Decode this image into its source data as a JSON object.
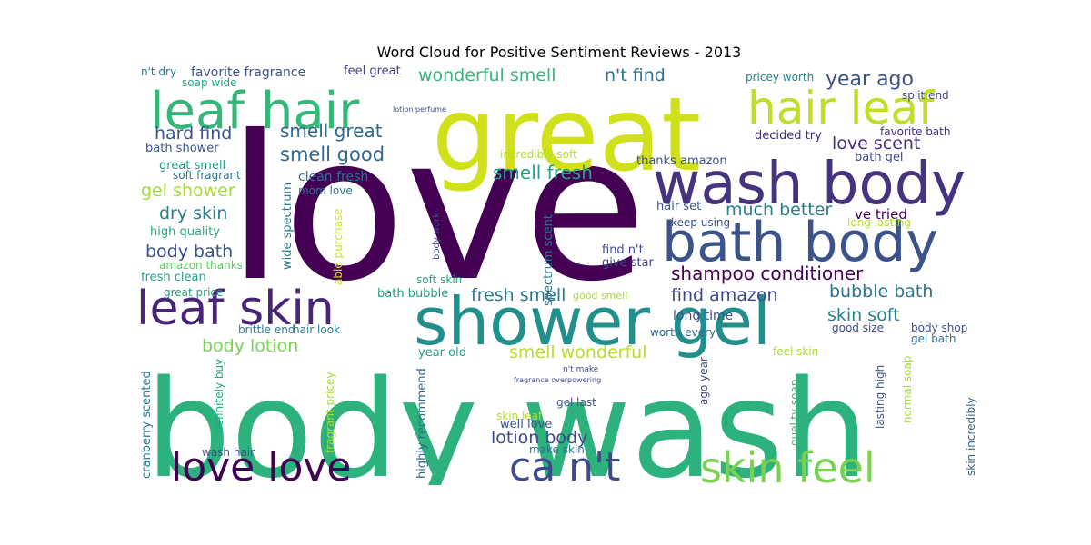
{
  "title": "Word Cloud for Positive Sentiment Reviews - 2013",
  "chart_data": {
    "type": "wordcloud",
    "title": "Word Cloud for Positive Sentiment Reviews - 2013",
    "colormap": "viridis",
    "background": "#ffffff",
    "words": [
      {
        "text": "love",
        "weight": 1.0,
        "color": "#440154"
      },
      {
        "text": "body wash",
        "weight": 0.95,
        "color": "#2db27d"
      },
      {
        "text": "great",
        "weight": 0.72,
        "color": "#d0e11c"
      },
      {
        "text": "shower gel",
        "weight": 0.5,
        "color": "#21908d"
      },
      {
        "text": "wash body",
        "weight": 0.44,
        "color": "#46337f"
      },
      {
        "text": "bath body",
        "weight": 0.41,
        "color": "#3b528b"
      },
      {
        "text": "leaf hair",
        "weight": 0.38,
        "color": "#35b779"
      },
      {
        "text": "leaf skin",
        "weight": 0.35,
        "color": "#482576"
      },
      {
        "text": "hair leaf",
        "weight": 0.33,
        "color": "#bddf26"
      },
      {
        "text": "love love",
        "weight": 0.3,
        "color": "#440154"
      },
      {
        "text": "ca n't",
        "weight": 0.3,
        "color": "#3e4989"
      },
      {
        "text": "skin feel",
        "weight": 0.29,
        "color": "#7ad151"
      },
      {
        "text": "wonderful smell",
        "weight": 0.16,
        "color": "#35b779"
      },
      {
        "text": "n't find",
        "weight": 0.16,
        "color": "#2c728e"
      },
      {
        "text": "year ago",
        "weight": 0.16,
        "color": "#3b528b"
      },
      {
        "text": "smell great",
        "weight": 0.15,
        "color": "#31688e"
      },
      {
        "text": "smell good",
        "weight": 0.15,
        "color": "#31688e"
      },
      {
        "text": "love scent",
        "weight": 0.14,
        "color": "#472d7b"
      },
      {
        "text": "hard find",
        "weight": 0.14,
        "color": "#3b528b"
      },
      {
        "text": "smell fresh",
        "weight": 0.14,
        "color": "#20a486"
      },
      {
        "text": "gel shower",
        "weight": 0.14,
        "color": "#a5db36"
      },
      {
        "text": "dry skin",
        "weight": 0.14,
        "color": "#287c8e"
      },
      {
        "text": "much better",
        "weight": 0.14,
        "color": "#277f8e"
      },
      {
        "text": "shampoo conditioner",
        "weight": 0.14,
        "color": "#440154"
      },
      {
        "text": "body bath",
        "weight": 0.13,
        "color": "#3b528b"
      },
      {
        "text": "bubble bath",
        "weight": 0.13,
        "color": "#2c728e"
      },
      {
        "text": "fresh smell",
        "weight": 0.13,
        "color": "#2a788e"
      },
      {
        "text": "find amazon",
        "weight": 0.13,
        "color": "#3e4989"
      },
      {
        "text": "skin soft",
        "weight": 0.13,
        "color": "#26828e"
      },
      {
        "text": "body lotion",
        "weight": 0.13,
        "color": "#7ad151"
      },
      {
        "text": "smell wonderful",
        "weight": 0.13,
        "color": "#b5de2b"
      },
      {
        "text": "lotion body",
        "weight": 0.13,
        "color": "#3e4989"
      },
      {
        "text": "favorite fragrance",
        "weight": 0.1,
        "color": "#3b528b"
      },
      {
        "text": "feel great",
        "weight": 0.08,
        "color": "#414487"
      },
      {
        "text": "soap wide",
        "weight": 0.08,
        "color": "#22a884"
      },
      {
        "text": "n't dry",
        "weight": 0.08,
        "color": "#2a788e"
      },
      {
        "text": "pricey worth",
        "weight": 0.08,
        "color": "#26828e"
      },
      {
        "text": "split end",
        "weight": 0.08,
        "color": "#3e4989"
      },
      {
        "text": "decided try",
        "weight": 0.08,
        "color": "#482878"
      },
      {
        "text": "favorite bath",
        "weight": 0.08,
        "color": "#472d7b"
      },
      {
        "text": "bath shower",
        "weight": 0.08,
        "color": "#3b528b"
      },
      {
        "text": "great smell",
        "weight": 0.08,
        "color": "#1fa187"
      },
      {
        "text": "soft fragrant",
        "weight": 0.08,
        "color": "#2c728e"
      },
      {
        "text": "incredibly soft",
        "weight": 0.08,
        "color": "#b5de2b"
      },
      {
        "text": "thanks amazon",
        "weight": 0.08,
        "color": "#3b528b"
      },
      {
        "text": "bath gel",
        "weight": 0.08,
        "color": "#3e4989"
      },
      {
        "text": "clean fresh",
        "weight": 0.09,
        "color": "#2c728e"
      },
      {
        "text": "mom love",
        "weight": 0.07,
        "color": "#2c728e"
      },
      {
        "text": "ve tried",
        "weight": 0.09,
        "color": "#440154"
      },
      {
        "text": "hair set",
        "weight": 0.08,
        "color": "#3b528b"
      },
      {
        "text": "keep using",
        "weight": 0.07,
        "color": "#3b528b"
      },
      {
        "text": "long lasting",
        "weight": 0.07,
        "color": "#b5de2b"
      },
      {
        "text": "high quality",
        "weight": 0.08,
        "color": "#22a884"
      },
      {
        "text": "amazon thanks",
        "weight": 0.07,
        "color": "#5ec962"
      },
      {
        "text": "fresh clean",
        "weight": 0.07,
        "color": "#1fa187"
      },
      {
        "text": "wide spectrum",
        "weight": 0.08,
        "color": "#2a788e"
      },
      {
        "text": "spectrum scent",
        "weight": 0.07,
        "color": "#2c728e"
      },
      {
        "text": "find n't",
        "weight": 0.08,
        "color": "#3e4989"
      },
      {
        "text": "give star",
        "weight": 0.08,
        "color": "#3e4989"
      },
      {
        "text": "soft skin",
        "weight": 0.07,
        "color": "#22a884"
      },
      {
        "text": "great price",
        "weight": 0.07,
        "color": "#1fa187"
      },
      {
        "text": "bath bubble",
        "weight": 0.08,
        "color": "#1fa187"
      },
      {
        "text": "good smell",
        "weight": 0.07,
        "color": "#a5db36"
      },
      {
        "text": "long time",
        "weight": 0.08,
        "color": "#3b528b"
      },
      {
        "text": "good size",
        "weight": 0.07,
        "color": "#3e4989"
      },
      {
        "text": "body shop",
        "weight": 0.07,
        "color": "#3b528b"
      },
      {
        "text": "gel bath",
        "weight": 0.07,
        "color": "#2c728e"
      },
      {
        "text": "worth every",
        "weight": 0.07,
        "color": "#31688e"
      },
      {
        "text": "brittle end",
        "weight": 0.07,
        "color": "#2a788e"
      },
      {
        "text": "hair look",
        "weight": 0.07,
        "color": "#2a788e"
      },
      {
        "text": "year old",
        "weight": 0.07,
        "color": "#1fa187"
      },
      {
        "text": "feel skin",
        "weight": 0.07,
        "color": "#a5db36"
      },
      {
        "text": "fragrance overpowering",
        "weight": 0.04,
        "color": "#3e4989"
      },
      {
        "text": "lasting high",
        "weight": 0.07,
        "color": "#3b528b"
      },
      {
        "text": "normal soap",
        "weight": 0.07,
        "color": "#a5db36"
      },
      {
        "text": "ago year",
        "weight": 0.07,
        "color": "#3e4989"
      },
      {
        "text": "quality soap",
        "weight": 0.07,
        "color": "#35b779"
      },
      {
        "text": "skin incredibly",
        "weight": 0.07,
        "color": "#31688e"
      },
      {
        "text": "gel last",
        "weight": 0.07,
        "color": "#3b528b"
      },
      {
        "text": "skin leaf",
        "weight": 0.07,
        "color": "#b5de2b"
      },
      {
        "text": "well love",
        "weight": 0.07,
        "color": "#3b528b"
      },
      {
        "text": "highly recommend",
        "weight": 0.07,
        "color": "#31688e"
      },
      {
        "text": "make skin",
        "weight": 0.07,
        "color": "#2c728e"
      },
      {
        "text": "wash hair",
        "weight": 0.07,
        "color": "#3b528b"
      },
      {
        "text": "definitely buy",
        "weight": 0.07,
        "color": "#22a884"
      },
      {
        "text": "fragrant pricey",
        "weight": 0.07,
        "color": "#a5db36"
      },
      {
        "text": "cranberry scented",
        "weight": 0.07,
        "color": "#2a788e"
      },
      {
        "text": "body work",
        "weight": 0.04,
        "color": "#3e4989"
      },
      {
        "text": "able purchase",
        "weight": 0.05,
        "color": "#d0e11c"
      },
      {
        "text": "lotion perfume",
        "weight": 0.04,
        "color": "#3b528b"
      },
      {
        "text": "n't make",
        "weight": 0.04,
        "color": "#3e4989"
      }
    ]
  }
}
